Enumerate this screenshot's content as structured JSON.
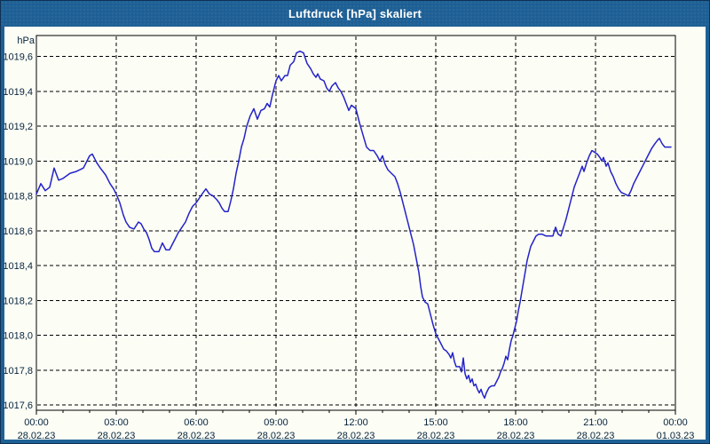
{
  "window": {
    "title": "Luftdruck [hPa] skaliert"
  },
  "colors": {
    "chrome": "#1e6095",
    "chrome_border": "#0e3254",
    "content_bg": "#fcfdf5",
    "grid": "#000000",
    "axis": "#000000",
    "line": "#2323c8",
    "label_text": "#06233d",
    "title_text": "#ffffff"
  },
  "chart_data": {
    "type": "line",
    "title": "Luftdruck [hPa] skaliert",
    "ylabel": "hPa",
    "xlabel": "",
    "ylim": [
      1017.57,
      1019.72
    ],
    "grid": "dashed",
    "legend": "none",
    "y_axis": {
      "unit": "hPa",
      "tick_values": [
        1019.6,
        1019.4,
        1019.2,
        1019.0,
        1018.8,
        1018.6,
        1018.4,
        1018.2,
        1018.0,
        1017.8,
        1017.6
      ],
      "tick_labels": [
        "1019,6",
        "1019,4",
        "1019,2",
        "1019,0",
        "1018,8",
        "1018,6",
        "1018,4",
        "1018,2",
        "1018,0",
        "1017,8",
        "1017,6"
      ]
    },
    "x_axis": {
      "span_minutes": 1440,
      "major_tick_minutes": 180,
      "minor_tick_minutes": 60,
      "major_labels": [
        {
          "time": "00:00",
          "date": "28.02.23"
        },
        {
          "time": "03:00",
          "date": "28.02.23"
        },
        {
          "time": "06:00",
          "date": "28.02.23"
        },
        {
          "time": "09:00",
          "date": "28.02.23"
        },
        {
          "time": "12:00",
          "date": "28.02.23"
        },
        {
          "time": "15:00",
          "date": "28.02.23"
        },
        {
          "time": "18:00",
          "date": "28.02.23"
        },
        {
          "time": "21:00",
          "date": "28.02.23"
        },
        {
          "time": "00:00",
          "date": "01.03.23"
        }
      ]
    },
    "series": [
      {
        "name": "Luftdruck",
        "color": "#2323c8",
        "points": [
          [
            0,
            1018.81
          ],
          [
            10,
            1018.87
          ],
          [
            20,
            1018.83
          ],
          [
            30,
            1018.85
          ],
          [
            40,
            1018.96
          ],
          [
            50,
            1018.89
          ],
          [
            60,
            1018.9
          ],
          [
            76,
            1018.93
          ],
          [
            90,
            1018.94
          ],
          [
            106,
            1018.96
          ],
          [
            120,
            1019.03
          ],
          [
            126,
            1019.04
          ],
          [
            136,
            1018.99
          ],
          [
            144,
            1018.96
          ],
          [
            156,
            1018.92
          ],
          [
            166,
            1018.87
          ],
          [
            174,
            1018.84
          ],
          [
            180,
            1018.81
          ],
          [
            188,
            1018.76
          ],
          [
            196,
            1018.69
          ],
          [
            202,
            1018.65
          ],
          [
            210,
            1018.62
          ],
          [
            220,
            1018.61
          ],
          [
            230,
            1018.65
          ],
          [
            236,
            1018.64
          ],
          [
            242,
            1018.61
          ],
          [
            248,
            1018.59
          ],
          [
            254,
            1018.55
          ],
          [
            260,
            1018.5
          ],
          [
            266,
            1018.48
          ],
          [
            276,
            1018.48
          ],
          [
            284,
            1018.53
          ],
          [
            292,
            1018.49
          ],
          [
            300,
            1018.49
          ],
          [
            310,
            1018.54
          ],
          [
            320,
            1018.59
          ],
          [
            328,
            1018.62
          ],
          [
            336,
            1018.65
          ],
          [
            344,
            1018.7
          ],
          [
            352,
            1018.74
          ],
          [
            360,
            1018.76
          ],
          [
            368,
            1018.79
          ],
          [
            376,
            1018.82
          ],
          [
            382,
            1018.84
          ],
          [
            390,
            1018.81
          ],
          [
            398,
            1018.8
          ],
          [
            406,
            1018.78
          ],
          [
            412,
            1018.76
          ],
          [
            418,
            1018.73
          ],
          [
            424,
            1018.71
          ],
          [
            432,
            1018.71
          ],
          [
            438,
            1018.77
          ],
          [
            444,
            1018.84
          ],
          [
            450,
            1018.93
          ],
          [
            456,
            1019.0
          ],
          [
            462,
            1019.08
          ],
          [
            468,
            1019.13
          ],
          [
            474,
            1019.2
          ],
          [
            482,
            1019.26
          ],
          [
            490,
            1019.3
          ],
          [
            498,
            1019.24
          ],
          [
            506,
            1019.29
          ],
          [
            514,
            1019.3
          ],
          [
            520,
            1019.33
          ],
          [
            526,
            1019.31
          ],
          [
            532,
            1019.38
          ],
          [
            540,
            1019.46
          ],
          [
            546,
            1019.49
          ],
          [
            552,
            1019.46
          ],
          [
            560,
            1019.49
          ],
          [
            566,
            1019.49
          ],
          [
            572,
            1019.55
          ],
          [
            580,
            1019.57
          ],
          [
            586,
            1019.62
          ],
          [
            594,
            1019.63
          ],
          [
            602,
            1019.62
          ],
          [
            610,
            1019.56
          ],
          [
            618,
            1019.53
          ],
          [
            624,
            1019.5
          ],
          [
            630,
            1019.48
          ],
          [
            634,
            1019.5
          ],
          [
            640,
            1019.47
          ],
          [
            648,
            1019.46
          ],
          [
            654,
            1019.42
          ],
          [
            660,
            1019.4
          ],
          [
            666,
            1019.43
          ],
          [
            674,
            1019.45
          ],
          [
            680,
            1019.42
          ],
          [
            686,
            1019.4
          ],
          [
            692,
            1019.37
          ],
          [
            698,
            1019.33
          ],
          [
            704,
            1019.29
          ],
          [
            710,
            1019.32
          ],
          [
            720,
            1019.3
          ],
          [
            728,
            1019.22
          ],
          [
            736,
            1019.15
          ],
          [
            744,
            1019.08
          ],
          [
            752,
            1019.06
          ],
          [
            760,
            1019.06
          ],
          [
            768,
            1019.03
          ],
          [
            774,
            1019.0
          ],
          [
            780,
            1019.03
          ],
          [
            786,
            1018.98
          ],
          [
            792,
            1018.95
          ],
          [
            800,
            1018.93
          ],
          [
            808,
            1018.91
          ],
          [
            814,
            1018.87
          ],
          [
            820,
            1018.82
          ],
          [
            826,
            1018.76
          ],
          [
            832,
            1018.7
          ],
          [
            838,
            1018.64
          ],
          [
            844,
            1018.58
          ],
          [
            850,
            1018.52
          ],
          [
            856,
            1018.44
          ],
          [
            862,
            1018.36
          ],
          [
            866,
            1018.28
          ],
          [
            870,
            1018.22
          ],
          [
            876,
            1018.19
          ],
          [
            882,
            1018.18
          ],
          [
            888,
            1018.12
          ],
          [
            894,
            1018.06
          ],
          [
            900,
            1018.01
          ],
          [
            906,
            1017.98
          ],
          [
            912,
            1017.95
          ],
          [
            918,
            1017.92
          ],
          [
            924,
            1017.91
          ],
          [
            930,
            1017.89
          ],
          [
            934,
            1017.87
          ],
          [
            938,
            1017.9
          ],
          [
            942,
            1017.85
          ],
          [
            946,
            1017.82
          ],
          [
            954,
            1017.82
          ],
          [
            958,
            1017.79
          ],
          [
            962,
            1017.87
          ],
          [
            966,
            1017.78
          ],
          [
            970,
            1017.75
          ],
          [
            974,
            1017.77
          ],
          [
            978,
            1017.73
          ],
          [
            982,
            1017.75
          ],
          [
            986,
            1017.71
          ],
          [
            990,
            1017.72
          ],
          [
            994,
            1017.69
          ],
          [
            998,
            1017.67
          ],
          [
            1002,
            1017.69
          ],
          [
            1006,
            1017.66
          ],
          [
            1010,
            1017.64
          ],
          [
            1014,
            1017.67
          ],
          [
            1020,
            1017.7
          ],
          [
            1026,
            1017.71
          ],
          [
            1032,
            1017.71
          ],
          [
            1038,
            1017.74
          ],
          [
            1042,
            1017.76
          ],
          [
            1046,
            1017.79
          ],
          [
            1050,
            1017.81
          ],
          [
            1054,
            1017.84
          ],
          [
            1058,
            1017.88
          ],
          [
            1062,
            1017.86
          ],
          [
            1066,
            1017.92
          ],
          [
            1070,
            1017.97
          ],
          [
            1074,
            1018.0
          ],
          [
            1078,
            1018.04
          ],
          [
            1082,
            1018.08
          ],
          [
            1086,
            1018.14
          ],
          [
            1090,
            1018.19
          ],
          [
            1094,
            1018.25
          ],
          [
            1098,
            1018.31
          ],
          [
            1102,
            1018.37
          ],
          [
            1106,
            1018.43
          ],
          [
            1110,
            1018.47
          ],
          [
            1114,
            1018.51
          ],
          [
            1120,
            1018.54
          ],
          [
            1126,
            1018.57
          ],
          [
            1132,
            1018.58
          ],
          [
            1140,
            1018.58
          ],
          [
            1148,
            1018.57
          ],
          [
            1156,
            1018.57
          ],
          [
            1164,
            1018.57
          ],
          [
            1170,
            1018.62
          ],
          [
            1176,
            1018.58
          ],
          [
            1182,
            1018.57
          ],
          [
            1188,
            1018.62
          ],
          [
            1194,
            1018.67
          ],
          [
            1200,
            1018.73
          ],
          [
            1206,
            1018.79
          ],
          [
            1212,
            1018.85
          ],
          [
            1218,
            1018.89
          ],
          [
            1224,
            1018.93
          ],
          [
            1230,
            1018.97
          ],
          [
            1234,
            1018.94
          ],
          [
            1240,
            1018.99
          ],
          [
            1246,
            1019.03
          ],
          [
            1252,
            1019.06
          ],
          [
            1258,
            1019.05
          ],
          [
            1264,
            1019.04
          ],
          [
            1270,
            1019.02
          ],
          [
            1274,
            1019.0
          ],
          [
            1278,
            1019.02
          ],
          [
            1284,
            1018.97
          ],
          [
            1288,
            1018.99
          ],
          [
            1294,
            1018.94
          ],
          [
            1300,
            1018.91
          ],
          [
            1306,
            1018.87
          ],
          [
            1312,
            1018.84
          ],
          [
            1318,
            1018.82
          ],
          [
            1326,
            1018.81
          ],
          [
            1334,
            1018.8
          ],
          [
            1340,
            1018.83
          ],
          [
            1346,
            1018.87
          ],
          [
            1354,
            1018.91
          ],
          [
            1360,
            1018.94
          ],
          [
            1366,
            1018.97
          ],
          [
            1374,
            1019.01
          ],
          [
            1380,
            1019.04
          ],
          [
            1386,
            1019.07
          ],
          [
            1394,
            1019.1
          ],
          [
            1400,
            1019.12
          ],
          [
            1404,
            1019.13
          ],
          [
            1410,
            1019.1
          ],
          [
            1416,
            1019.08
          ],
          [
            1422,
            1019.08
          ],
          [
            1430,
            1019.08
          ]
        ]
      }
    ]
  }
}
